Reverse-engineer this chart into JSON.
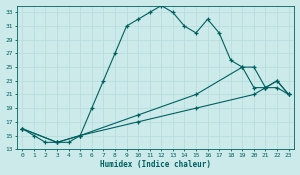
{
  "xlabel": "Humidex (Indice chaleur)",
  "bg_color": "#cceaea",
  "grid_color": "#aad4d4",
  "line_color": "#006060",
  "xlim": [
    -0.5,
    23.5
  ],
  "ylim": [
    13,
    34
  ],
  "xticks": [
    0,
    1,
    2,
    3,
    4,
    5,
    6,
    7,
    8,
    9,
    10,
    11,
    12,
    13,
    14,
    15,
    16,
    17,
    18,
    19,
    20,
    21,
    22,
    23
  ],
  "yticks": [
    13,
    15,
    17,
    19,
    21,
    23,
    25,
    27,
    29,
    31,
    33
  ],
  "series1_x": [
    0,
    1,
    2,
    3,
    4,
    5,
    6,
    7,
    8,
    9,
    10,
    11,
    12,
    13,
    14,
    15,
    16,
    17,
    18,
    19,
    20,
    21,
    22,
    23
  ],
  "series1_y": [
    16,
    15,
    14,
    14,
    14,
    15,
    19,
    23,
    27,
    31,
    32,
    33,
    34,
    33,
    31,
    30,
    32,
    30,
    26,
    25,
    22,
    22,
    23,
    21
  ],
  "series2_x": [
    0,
    3,
    5,
    10,
    15,
    20,
    21,
    22,
    23
  ],
  "series2_y": [
    16,
    14,
    15,
    17,
    19,
    21,
    22,
    22,
    21
  ],
  "series3_x": [
    0,
    3,
    5,
    10,
    15,
    19,
    20,
    21,
    22,
    23
  ],
  "series3_y": [
    16,
    14,
    15,
    18,
    21,
    25,
    25,
    22,
    23,
    21
  ]
}
